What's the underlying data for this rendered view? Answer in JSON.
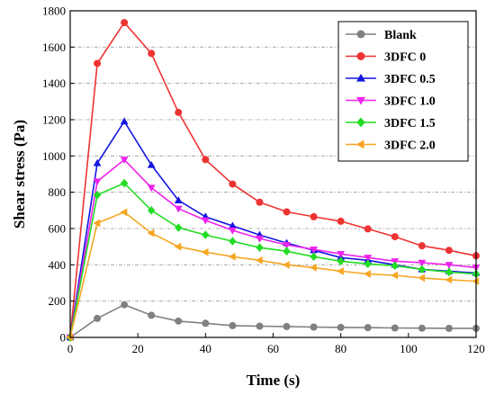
{
  "chart_data": {
    "type": "line",
    "title": "",
    "xlabel": "Time (s)",
    "ylabel": "Shear stress (Pa)",
    "xlim": [
      0,
      120
    ],
    "ylim": [
      0,
      1800
    ],
    "xticks": [
      0,
      20,
      40,
      60,
      80,
      100,
      120
    ],
    "yticks": [
      0,
      200,
      400,
      600,
      800,
      1000,
      1200,
      1400,
      1600,
      1800
    ],
    "grid": "horizontal dashed",
    "legend_position": "top-right",
    "x": [
      0,
      8,
      16,
      24,
      32,
      40,
      48,
      56,
      64,
      72,
      80,
      88,
      96,
      104,
      112,
      120
    ],
    "series": [
      {
        "name": "Blank",
        "color": "#808080",
        "marker": "circle",
        "values": [
          0,
          105,
          180,
          122,
          90,
          78,
          65,
          62,
          60,
          57,
          55,
          54,
          52,
          51,
          50,
          50
        ]
      },
      {
        "name": "3DFC 0",
        "color": "#ee3333",
        "marker": "circle",
        "values": [
          0,
          1510,
          1735,
          1565,
          1240,
          980,
          845,
          745,
          692,
          665,
          640,
          598,
          555,
          505,
          480,
          450
        ]
      },
      {
        "name": "3DFC 0.5",
        "color": "#1515e0",
        "marker": "triangle-up",
        "values": [
          0,
          960,
          1190,
          950,
          755,
          665,
          615,
          565,
          520,
          480,
          440,
          425,
          400,
          375,
          365,
          355
        ]
      },
      {
        "name": "3DFC 1.0",
        "color": "#ee22ee",
        "marker": "triangle-down",
        "values": [
          0,
          860,
          980,
          825,
          710,
          645,
          590,
          545,
          510,
          485,
          460,
          440,
          420,
          412,
          400,
          385
        ]
      },
      {
        "name": "3DFC 1.5",
        "color": "#22dd22",
        "marker": "diamond",
        "values": [
          0,
          785,
          850,
          700,
          605,
          565,
          530,
          495,
          475,
          445,
          420,
          405,
          395,
          375,
          360,
          350
        ]
      },
      {
        "name": "3DFC 2.0",
        "color": "#f5a623",
        "marker": "triangle-left",
        "values": [
          0,
          630,
          690,
          575,
          500,
          470,
          445,
          425,
          400,
          385,
          365,
          350,
          342,
          328,
          318,
          310
        ]
      }
    ]
  }
}
